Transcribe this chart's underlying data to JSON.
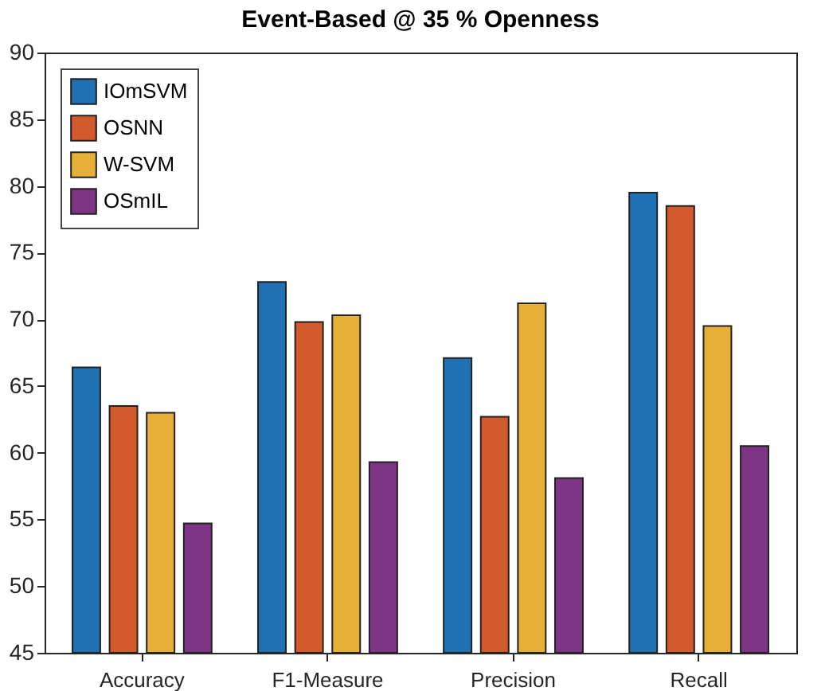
{
  "chart_data": {
    "type": "bar",
    "title": "Event-Based @ 35 % Openness",
    "categories": [
      "Accuracy",
      "F1-Measure",
      "Precision",
      "Recall"
    ],
    "series": [
      {
        "name": "IOmSVM",
        "color": "#2070b4",
        "values": [
          66.4,
          72.8,
          67.1,
          79.5
        ]
      },
      {
        "name": "OSNN",
        "color": "#d35a2d",
        "values": [
          63.5,
          69.8,
          62.7,
          78.5
        ]
      },
      {
        "name": "W-SVM",
        "color": "#e6b038",
        "values": [
          63.0,
          70.3,
          71.2,
          69.5
        ]
      },
      {
        "name": "OSmIL",
        "color": "#7e3585",
        "values": [
          54.7,
          59.3,
          58.1,
          60.5
        ]
      }
    ],
    "ylim": [
      45,
      90
    ],
    "yticks": [
      45,
      50,
      55,
      60,
      65,
      70,
      75,
      80,
      85,
      90
    ],
    "grid": false,
    "legend": "top left"
  }
}
